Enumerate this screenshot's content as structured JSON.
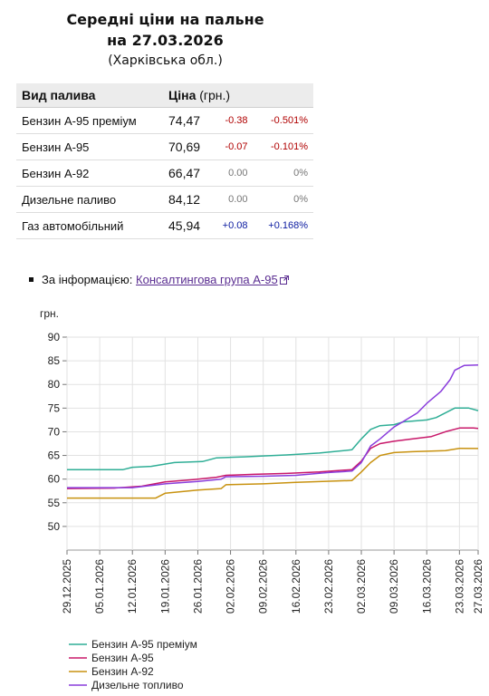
{
  "header": {
    "line1": "Середні ціни на пальне",
    "line2": "на 27.03.2026",
    "line3": "(Харківська обл.)"
  },
  "table": {
    "col_fuel": "Вид палива",
    "col_price": "Ціна",
    "col_unit": "(грн.)",
    "rows": [
      {
        "name": "Бензин А-95 преміум",
        "price": "74,47",
        "diff": "-0.38",
        "pct": "-0.501%",
        "trend": "neg"
      },
      {
        "name": "Бензин А-95",
        "price": "70,69",
        "diff": "-0.07",
        "pct": "-0.101%",
        "trend": "neg"
      },
      {
        "name": "Бензин А-92",
        "price": "66,47",
        "diff": "0.00",
        "pct": "0%",
        "trend": "zero"
      },
      {
        "name": "Дизельне паливо",
        "price": "84,12",
        "diff": "0.00",
        "pct": "0%",
        "trend": "zero"
      },
      {
        "name": "Газ автомобільний",
        "price": "45,94",
        "diff": "+0.08",
        "pct": "+0.168%",
        "trend": "pos"
      }
    ]
  },
  "source": {
    "prefix": "За інформацією:",
    "link_text": "Консалтингова група А-95",
    "icon": "external-link-icon"
  },
  "colors": {
    "premium95": "#2fae96",
    "a95": "#c8186a",
    "a92": "#c89210",
    "diesel": "#8a3ddc",
    "link": "#5a2d91"
  },
  "chart_data": {
    "type": "line",
    "ylabel": "грн.",
    "ylim": [
      45,
      90
    ],
    "yticks": [
      50,
      55,
      60,
      65,
      70,
      75,
      80,
      85,
      90
    ],
    "x_dates": [
      "29.12.2025",
      "05.01.2026",
      "12.01.2026",
      "19.01.2026",
      "26.01.2026",
      "02.02.2026",
      "09.02.2026",
      "16.02.2026",
      "23.02.2026",
      "02.03.2026",
      "09.03.2026",
      "16.03.2026",
      "23.03.2026",
      "27.03.2026"
    ],
    "x_start": "2025-12-29",
    "x_end": "2026-03-27",
    "series": [
      {
        "name": "Бензин А-95 преміум",
        "color_key": "premium95",
        "points": [
          [
            "2025-12-29",
            62.0
          ],
          [
            "2026-01-10",
            62.0
          ],
          [
            "2026-01-12",
            62.5
          ],
          [
            "2026-01-16",
            62.7
          ],
          [
            "2026-01-21",
            63.5
          ],
          [
            "2026-01-27",
            63.7
          ],
          [
            "2026-01-30",
            64.5
          ],
          [
            "2026-02-05",
            64.7
          ],
          [
            "2026-02-09",
            64.9
          ],
          [
            "2026-02-14",
            65.1
          ],
          [
            "2026-02-21",
            65.5
          ],
          [
            "2026-02-28",
            66.2
          ],
          [
            "2026-03-02",
            68.5
          ],
          [
            "2026-03-04",
            70.5
          ],
          [
            "2026-03-06",
            71.3
          ],
          [
            "2026-03-09",
            71.5
          ],
          [
            "2026-03-11",
            72.1
          ],
          [
            "2026-03-16",
            72.5
          ],
          [
            "2026-03-18",
            73.0
          ],
          [
            "2026-03-20",
            74.0
          ],
          [
            "2026-03-22",
            75.0
          ],
          [
            "2026-03-25",
            75.0
          ],
          [
            "2026-03-27",
            74.47
          ]
        ]
      },
      {
        "name": "Бензин А-95",
        "color_key": "a95",
        "points": [
          [
            "2025-12-29",
            58.0
          ],
          [
            "2026-01-08",
            58.1
          ],
          [
            "2026-01-14",
            58.5
          ],
          [
            "2026-01-19",
            59.4
          ],
          [
            "2026-01-25",
            59.9
          ],
          [
            "2026-01-30",
            60.4
          ],
          [
            "2026-02-01",
            60.8
          ],
          [
            "2026-02-07",
            61.0
          ],
          [
            "2026-02-14",
            61.2
          ],
          [
            "2026-02-21",
            61.5
          ],
          [
            "2026-02-28",
            62.0
          ],
          [
            "2026-03-02",
            63.8
          ],
          [
            "2026-03-04",
            66.5
          ],
          [
            "2026-03-06",
            67.5
          ],
          [
            "2026-03-09",
            68.0
          ],
          [
            "2026-03-13",
            68.5
          ],
          [
            "2026-03-17",
            69.0
          ],
          [
            "2026-03-20",
            70.0
          ],
          [
            "2026-03-23",
            70.8
          ],
          [
            "2026-03-26",
            70.8
          ],
          [
            "2026-03-27",
            70.69
          ]
        ]
      },
      {
        "name": "Бензин А-92",
        "color_key": "a92",
        "points": [
          [
            "2025-12-29",
            56.0
          ],
          [
            "2026-01-17",
            56.0
          ],
          [
            "2026-01-19",
            57.0
          ],
          [
            "2026-01-26",
            57.7
          ],
          [
            "2026-01-31",
            58.0
          ],
          [
            "2026-02-01",
            58.8
          ],
          [
            "2026-02-09",
            59.0
          ],
          [
            "2026-02-16",
            59.3
          ],
          [
            "2026-02-28",
            59.7
          ],
          [
            "2026-03-02",
            61.5
          ],
          [
            "2026-03-04",
            63.5
          ],
          [
            "2026-03-06",
            65.0
          ],
          [
            "2026-03-09",
            65.6
          ],
          [
            "2026-03-13",
            65.8
          ],
          [
            "2026-03-20",
            66.0
          ],
          [
            "2026-03-23",
            66.5
          ],
          [
            "2026-03-27",
            66.47
          ]
        ]
      },
      {
        "name": "Дизельне топливо",
        "color_key": "diesel",
        "points": [
          [
            "2025-12-29",
            58.2
          ],
          [
            "2026-01-12",
            58.2
          ],
          [
            "2026-01-19",
            59.0
          ],
          [
            "2026-01-26",
            59.5
          ],
          [
            "2026-01-31",
            60.0
          ],
          [
            "2026-02-01",
            60.5
          ],
          [
            "2026-02-09",
            60.6
          ],
          [
            "2026-02-16",
            60.8
          ],
          [
            "2026-02-23",
            61.4
          ],
          [
            "2026-02-28",
            61.7
          ],
          [
            "2026-03-02",
            63.5
          ],
          [
            "2026-03-04",
            67.0
          ],
          [
            "2026-03-06",
            68.5
          ],
          [
            "2026-03-09",
            71.0
          ],
          [
            "2026-03-11",
            72.2
          ],
          [
            "2026-03-14",
            74.0
          ],
          [
            "2026-03-16",
            76.0
          ],
          [
            "2026-03-19",
            78.5
          ],
          [
            "2026-03-21",
            81.0
          ],
          [
            "2026-03-22",
            83.0
          ],
          [
            "2026-03-23",
            83.5
          ],
          [
            "2026-03-24",
            84.0
          ],
          [
            "2026-03-27",
            84.12
          ]
        ]
      }
    ],
    "grid": true,
    "legend_position": "bottom-left"
  }
}
